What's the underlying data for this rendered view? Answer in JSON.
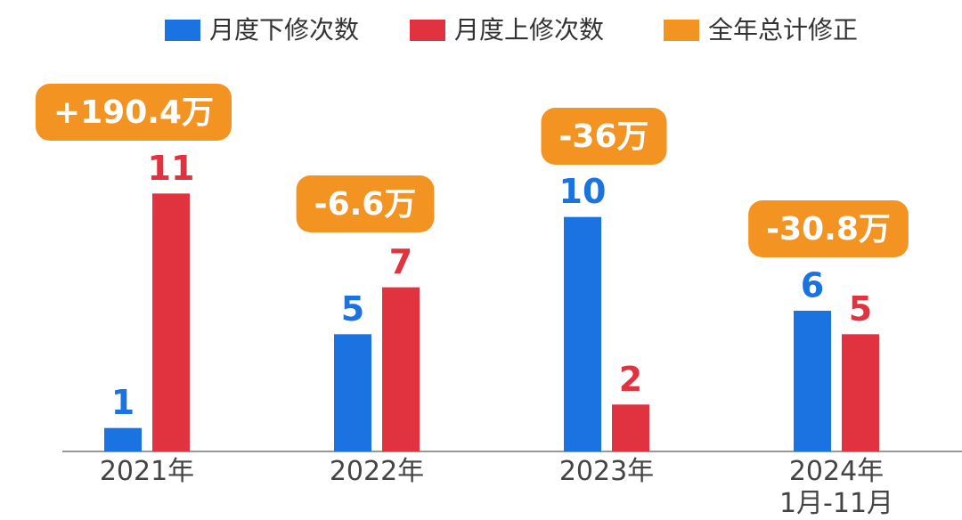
{
  "chart_data": {
    "type": "bar",
    "categories": [
      "2021年",
      "2022年",
      "2023年",
      "2024年\n1月-11月"
    ],
    "series": [
      {
        "name": "月度下修次数",
        "color": "#1a73e0",
        "values": [
          1,
          5,
          10,
          6
        ]
      },
      {
        "name": "月度上修次数",
        "color": "#e0333f",
        "values": [
          11,
          7,
          2,
          5
        ]
      },
      {
        "name": "全年总计修正",
        "color": "#f39322",
        "values": [
          190.4,
          -6.6,
          -36,
          -30.8
        ],
        "value_labels": [
          "+190.4万",
          "-6.6万",
          "-36万",
          "-30.8万"
        ]
      }
    ],
    "ylim": [
      0,
      12
    ]
  }
}
